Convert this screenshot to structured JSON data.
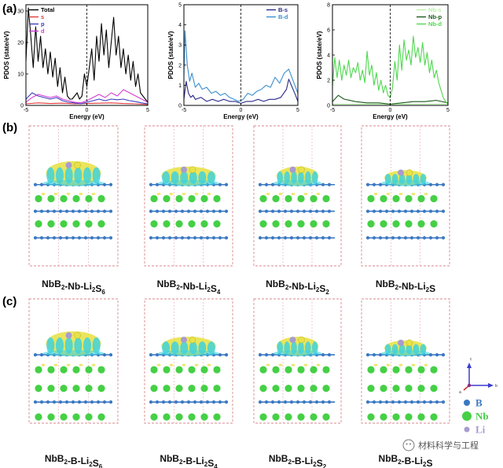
{
  "panel_labels": {
    "a": "(a)",
    "b": "(b)",
    "c": "(c)"
  },
  "colors": {
    "total": "#000000",
    "s": "#e23b3b",
    "p": "#3d3dbf",
    "d": "#d23bd2",
    "b_s": "#2a2a8a",
    "b_d": "#3a8fd0",
    "nb_s": "#b5f2a5",
    "nb_p": "#1a5a1a",
    "nb_d": "#4ed84e",
    "boron": "#3a78c2",
    "niobium": "#45d045",
    "lithium": "#a89bd0",
    "iso_yellow": "#e8e24a",
    "iso_cyan": "#3fd2dd"
  },
  "chart_data": [
    {
      "type": "line",
      "xlabel": "Energy (eV)",
      "ylabel": "PDOS (state/eV)",
      "xlim": [
        -5,
        5
      ],
      "ylim": [
        0,
        32
      ],
      "xticks": [
        "-5",
        "0",
        "5"
      ],
      "yticks": [
        "0",
        "10",
        "20",
        "30"
      ],
      "fermi_dashed": true,
      "legend_position": "top-left",
      "series": [
        {
          "name": "Total",
          "color": "#000000",
          "x": [
            -5,
            -4.8,
            -4.6,
            -4.4,
            -4.2,
            -4,
            -3.8,
            -3.6,
            -3.4,
            -3.2,
            -3,
            -2.8,
            -2.6,
            -2.4,
            -2.2,
            -2,
            -1.8,
            -1.6,
            -1.4,
            -1.2,
            -1,
            -0.8,
            -0.6,
            -0.4,
            -0.2,
            0,
            0.2,
            0.4,
            0.6,
            0.8,
            1,
            1.2,
            1.4,
            1.6,
            1.8,
            2,
            2.2,
            2.4,
            2.6,
            2.8,
            3,
            3.2,
            3.4,
            3.6,
            3.8,
            4,
            4.2,
            4.4,
            4.6,
            4.8,
            5
          ],
          "y": [
            14,
            31,
            22,
            12,
            25,
            14,
            22,
            12,
            18,
            10,
            17,
            9,
            15,
            6,
            12,
            4,
            9,
            3,
            2,
            2,
            3,
            4,
            2,
            3,
            10,
            6,
            12,
            18,
            8,
            22,
            14,
            26,
            16,
            24,
            12,
            20,
            28,
            16,
            22,
            12,
            18,
            10,
            16,
            8,
            14,
            6,
            10,
            4,
            3,
            2,
            1
          ]
        },
        {
          "name": "s",
          "color": "#e23b3b",
          "x": [
            -5,
            -4,
            -3,
            -2,
            -1,
            0,
            1,
            2,
            3,
            4,
            5
          ],
          "y": [
            0.5,
            0.8,
            0.6,
            0.7,
            0.5,
            0.6,
            0.7,
            0.8,
            0.6,
            0.5,
            0.3
          ]
        },
        {
          "name": "p",
          "color": "#3d3dbf",
          "x": [
            -5,
            -4.5,
            -4,
            -3.5,
            -3,
            -2.5,
            -2,
            -1.5,
            -1,
            -0.5,
            0,
            0.5,
            1,
            1.5,
            2,
            2.5,
            3,
            3.5,
            4,
            4.5,
            5
          ],
          "y": [
            2,
            4,
            3,
            2.5,
            2,
            2.5,
            1.5,
            1,
            0.8,
            0.5,
            1,
            1.5,
            2,
            1.5,
            2,
            1.8,
            2,
            1.5,
            1.2,
            0.8,
            0.5
          ]
        },
        {
          "name": "d",
          "color": "#d23bd2",
          "x": [
            -5,
            -4.5,
            -4,
            -3.5,
            -3,
            -2.5,
            -2,
            -1.5,
            -1,
            -0.5,
            0,
            0.5,
            1,
            1.5,
            2,
            2.5,
            3,
            3.5,
            4,
            4.5,
            5
          ],
          "y": [
            1,
            2.5,
            3.5,
            3,
            2.5,
            3,
            2,
            1.5,
            1,
            0.8,
            1.5,
            2.5,
            3.5,
            2.5,
            4,
            3,
            5,
            4,
            3,
            2,
            1
          ]
        }
      ]
    },
    {
      "type": "line",
      "xlabel": "Energy (eV)",
      "ylabel": "PDOS (state/eV)",
      "xlim": [
        -5,
        5
      ],
      "ylim": [
        0,
        5
      ],
      "xticks": [
        "-5",
        "0",
        "5"
      ],
      "yticks": [
        "0",
        "1",
        "2",
        "3",
        "4",
        "5"
      ],
      "fermi_dashed": true,
      "legend_position": "top-right",
      "series": [
        {
          "name": "B-s",
          "color": "#2a2a8a",
          "x": [
            -5,
            -4.8,
            -4.6,
            -4.4,
            -4.2,
            -4,
            -3.5,
            -3,
            -2.5,
            -2,
            -1.5,
            -1,
            -0.5,
            0,
            0.5,
            1,
            1.5,
            2,
            2.5,
            3,
            3.5,
            4,
            4.2,
            4.5,
            4.8,
            5
          ],
          "y": [
            0.3,
            1.2,
            0.6,
            0.4,
            0.5,
            0.3,
            0.4,
            0.2,
            0.3,
            0.2,
            0.3,
            0.2,
            0.2,
            0.1,
            0.2,
            0.2,
            0.3,
            0.2,
            0.3,
            0.3,
            0.4,
            0.8,
            1.3,
            0.9,
            0.5,
            0.2
          ]
        },
        {
          "name": "B-d",
          "color": "#3a8fd0",
          "x": [
            -5,
            -4.9,
            -4.7,
            -4.5,
            -4.3,
            -4,
            -3.7,
            -3.4,
            -3,
            -2.6,
            -2.2,
            -1.8,
            -1.4,
            -1,
            -0.6,
            -0.2,
            0.2,
            0.6,
            1,
            1.4,
            1.8,
            2.2,
            2.6,
            3,
            3.4,
            3.8,
            4.2,
            4.6,
            5
          ],
          "y": [
            1.5,
            3.7,
            2,
            1.2,
            1.6,
            0.9,
            1.1,
            0.8,
            0.9,
            0.6,
            0.7,
            0.5,
            0.6,
            0.4,
            0.3,
            0.2,
            0.3,
            0.6,
            0.5,
            0.7,
            0.8,
            1,
            0.9,
            1.4,
            1.1,
            1.6,
            1.8,
            1.2,
            0.6
          ]
        }
      ]
    },
    {
      "type": "line",
      "xlabel": "Energy (eV)",
      "ylabel": "PDOS (state/eV)",
      "xlim": [
        -5,
        5
      ],
      "ylim": [
        0,
        8
      ],
      "xticks": [
        "-5",
        "0",
        "5"
      ],
      "yticks": [
        "0",
        "2",
        "4",
        "6",
        "8"
      ],
      "fermi_dashed": true,
      "legend_position": "top-right",
      "series": [
        {
          "name": "Nb-s",
          "color": "#b5f2a5",
          "x": [
            -5,
            -4,
            -3,
            -2,
            -1,
            0,
            1,
            2,
            3,
            4,
            5
          ],
          "y": [
            0.1,
            0.1,
            0.1,
            0.1,
            0.1,
            0.1,
            0.1,
            0.1,
            0.1,
            0.1,
            0.1
          ]
        },
        {
          "name": "Nb-p",
          "color": "#1a5a1a",
          "x": [
            -5,
            -4.5,
            -4,
            -3.5,
            -3,
            -2,
            -1,
            0,
            1,
            2,
            3,
            4,
            5
          ],
          "y": [
            0.3,
            0.8,
            0.5,
            0.4,
            0.3,
            0.2,
            0.2,
            0.1,
            0.2,
            0.3,
            0.3,
            0.4,
            0.2
          ]
        },
        {
          "name": "Nb-d",
          "color": "#4ed84e",
          "x": [
            -5,
            -4.8,
            -4.6,
            -4.4,
            -4.2,
            -4,
            -3.8,
            -3.6,
            -3.4,
            -3.2,
            -3,
            -2.8,
            -2.6,
            -2.4,
            -2.2,
            -2,
            -1.8,
            -1.6,
            -1.4,
            -1.2,
            -1,
            -0.8,
            -0.6,
            -0.4,
            -0.2,
            0,
            0.2,
            0.4,
            0.6,
            0.8,
            1,
            1.2,
            1.4,
            1.6,
            1.8,
            2,
            2.2,
            2.4,
            2.6,
            2.8,
            3,
            3.2,
            3.4,
            3.6,
            3.8,
            4,
            4.2,
            4.4,
            4.6,
            4.8,
            5
          ],
          "y": [
            1.5,
            3.8,
            2.2,
            3.6,
            2,
            3.2,
            2.4,
            3.6,
            2.2,
            3,
            2.6,
            3.4,
            2,
            2.8,
            1.8,
            4.3,
            2.4,
            3.2,
            1.6,
            2.6,
            1.2,
            2,
            1,
            1.6,
            0.8,
            0.6,
            1.4,
            3.5,
            2,
            4.8,
            2.8,
            5.2,
            3.6,
            4.4,
            3.2,
            5.5,
            3.8,
            4.6,
            3.4,
            5,
            3.2,
            4.2,
            2.6,
            3.6,
            2.2,
            2.8,
            1.8,
            1.2,
            0.6,
            0.3,
            0.1
          ]
        }
      ]
    }
  ],
  "panel_b_captions": [
    {
      "main": "NbB",
      "sub1": "2",
      "mid": "-Nb-Li",
      "sub2": "2",
      "main2": "S",
      "sub3": "6"
    },
    {
      "main": "NbB",
      "sub1": "2",
      "mid": "-Nb-Li",
      "sub2": "2",
      "main2": "S",
      "sub3": "4"
    },
    {
      "main": "NbB",
      "sub1": "2",
      "mid": "-Nb-Li",
      "sub2": "2",
      "main2": "S",
      "sub3": "2"
    },
    {
      "main": "NbB",
      "sub1": "2",
      "mid": "-Nb-Li",
      "sub2": "2",
      "main2": "S",
      "sub3": ""
    }
  ],
  "panel_c_captions": [
    {
      "main": "NbB",
      "sub1": "2",
      "mid": "-B-Li",
      "sub2": "2",
      "main2": "S",
      "sub3": "6"
    },
    {
      "main": "NbB",
      "sub1": "2",
      "mid": "-B-Li",
      "sub2": "2",
      "main2": "S",
      "sub3": "4"
    },
    {
      "main": "NbB",
      "sub1": "2",
      "mid": "-B-Li",
      "sub2": "2",
      "main2": "S",
      "sub3": "2"
    },
    {
      "main": "NbB",
      "sub1": "2",
      "mid": "-B-Li",
      "sub2": "2",
      "main2": "S",
      "sub3": ""
    }
  ],
  "species_legend": [
    {
      "symbol": "B",
      "color": "#3a78c2"
    },
    {
      "symbol": "Nb",
      "color": "#45d045"
    },
    {
      "symbol": "Li",
      "color": "#a89bd0"
    }
  ],
  "axis_triad": {
    "c": "c",
    "a": "a",
    "b": "b"
  },
  "watermark": "材料科学与工程"
}
